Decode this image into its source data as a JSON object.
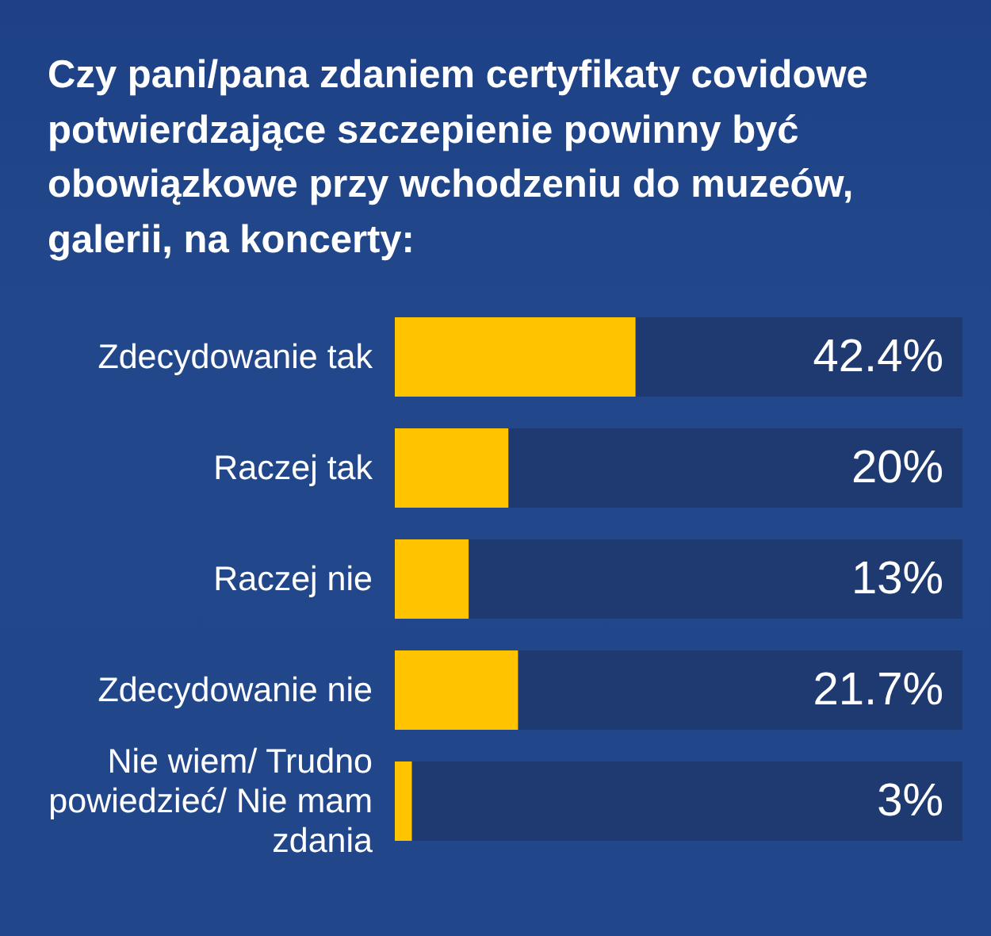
{
  "chart_data": {
    "type": "bar",
    "orientation": "horizontal",
    "title": "Czy pani/pana zdaniem certyfikaty covidowe potwierdzające szczepienie powinny być obowiązkowe przy wchodzeniu do muzeów, galerii, na koncerty:",
    "categories": [
      "Zdecydowanie tak",
      "Raczej tak",
      "Raczej nie",
      "Zdecydowanie nie",
      "Nie wiem/ Trudno powiedzieć/ Nie mam zdania"
    ],
    "values": [
      42.4,
      20,
      13,
      21.7,
      3
    ],
    "color": "#ffc300",
    "value_labels": [
      "42.4%",
      "20%",
      "13%",
      "21.7%",
      "3%"
    ],
    "xlim": [
      0,
      100
    ],
    "tick_labels": "y"
  }
}
